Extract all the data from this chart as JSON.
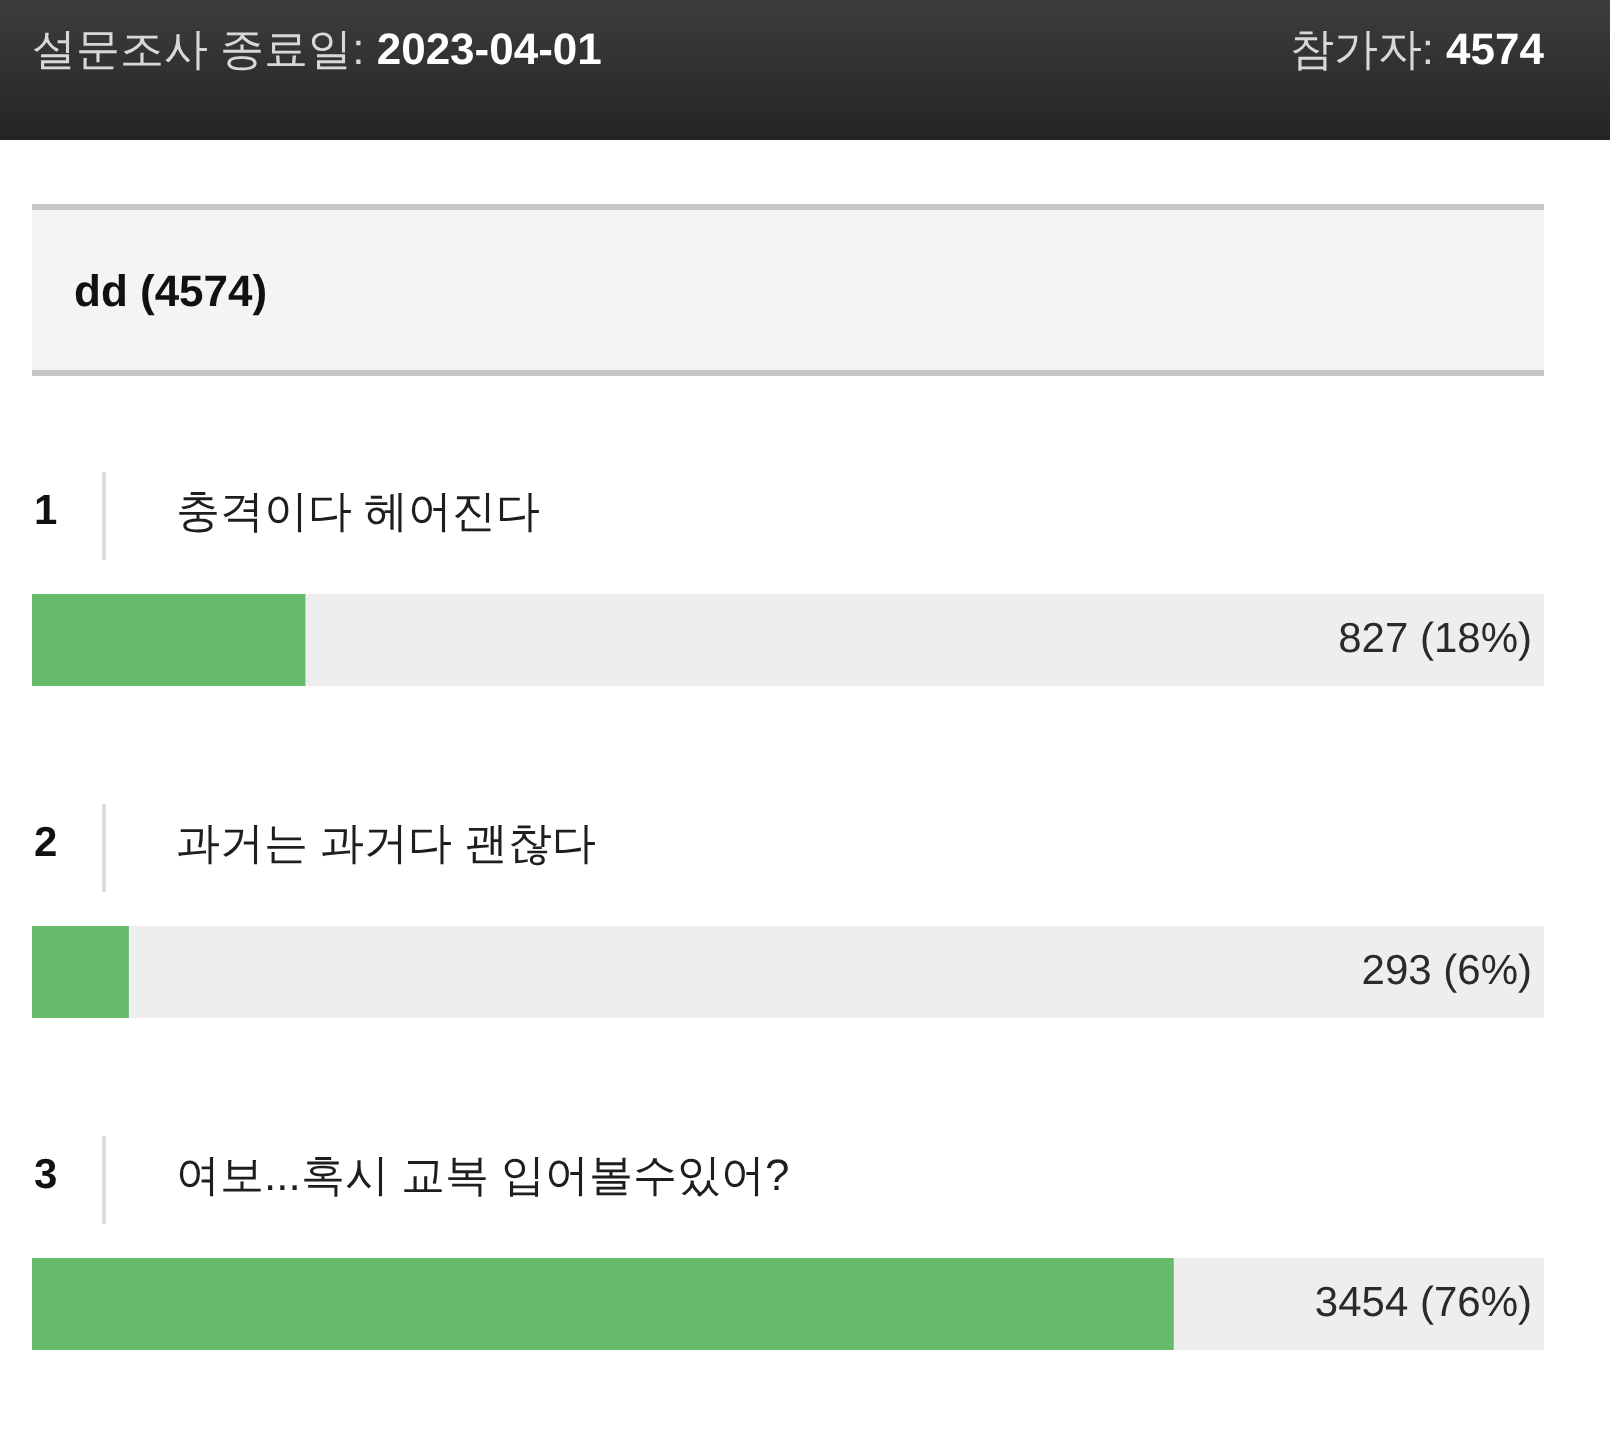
{
  "chart_data": {
    "type": "bar",
    "orientation": "horizontal",
    "title": "dd (4574)",
    "categories": [
      "충격이다 헤어진다",
      "과거는 과거다 괜찮다",
      "여보...혹시 교복 입어볼수있어?"
    ],
    "values": [
      827,
      293,
      3454
    ],
    "value_labels": [
      "827 (18%)",
      "293 (6%)",
      "3454 (76%)"
    ],
    "color": "#66bb6a",
    "xlim": [
      0,
      4574
    ],
    "tick_labels": "y",
    "annotations": [
      "설문조사 종료일: 2023-04-01",
      "참가자: 4574",
      "1",
      "2",
      "3"
    ]
  }
}
